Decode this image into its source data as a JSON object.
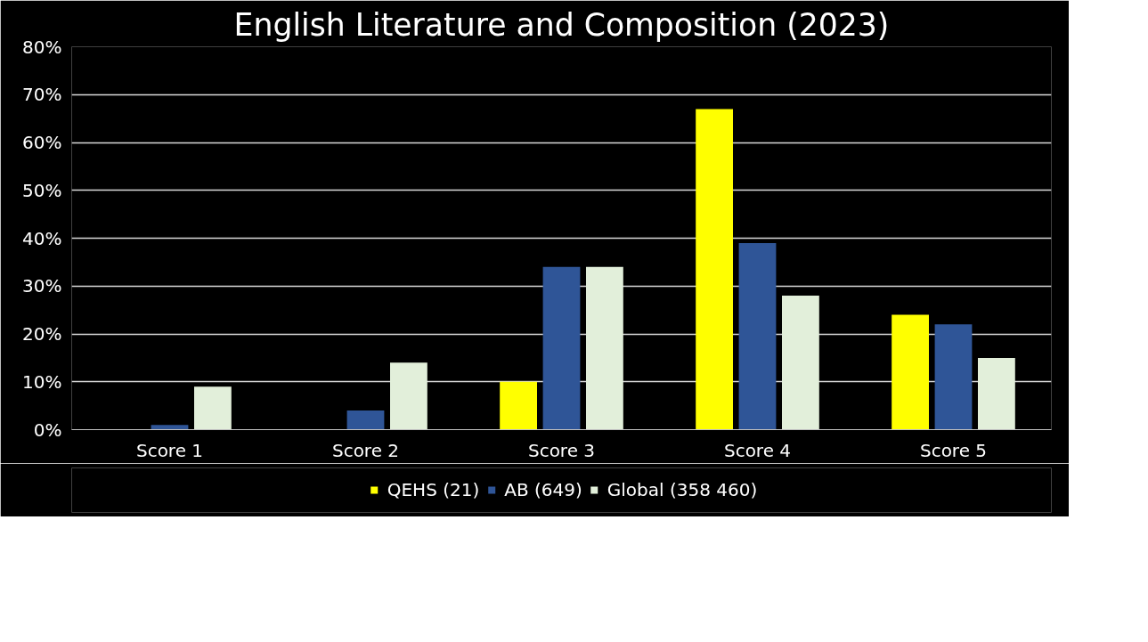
{
  "chart_data": {
    "type": "bar",
    "title": "English Literature and Composition (2023)",
    "categories": [
      "Score 1",
      "Score 2",
      "Score 3",
      "Score 4",
      "Score 5"
    ],
    "series": [
      {
        "name": "QEHS (21)",
        "color": "#ffff00",
        "values": [
          0,
          0,
          10,
          67,
          24
        ]
      },
      {
        "name": "AB (649)",
        "color": "#2f5597",
        "values": [
          1,
          4,
          34,
          39,
          22
        ]
      },
      {
        "name": "Global (358 460)",
        "color": "#e2efda",
        "values": [
          9,
          14,
          34,
          28,
          15
        ]
      }
    ],
    "ylim": [
      0,
      80
    ],
    "yticks": [
      {
        "value": 0,
        "label": "0%"
      },
      {
        "value": 10,
        "label": "10%"
      },
      {
        "value": 20,
        "label": "20%"
      },
      {
        "value": 30,
        "label": "30%"
      },
      {
        "value": 40,
        "label": "40%"
      },
      {
        "value": 50,
        "label": "50%"
      },
      {
        "value": 60,
        "label": "60%"
      },
      {
        "value": 70,
        "label": "70%"
      },
      {
        "value": 80,
        "label": "80%"
      }
    ],
    "grid": "y",
    "legend": "bottom"
  }
}
